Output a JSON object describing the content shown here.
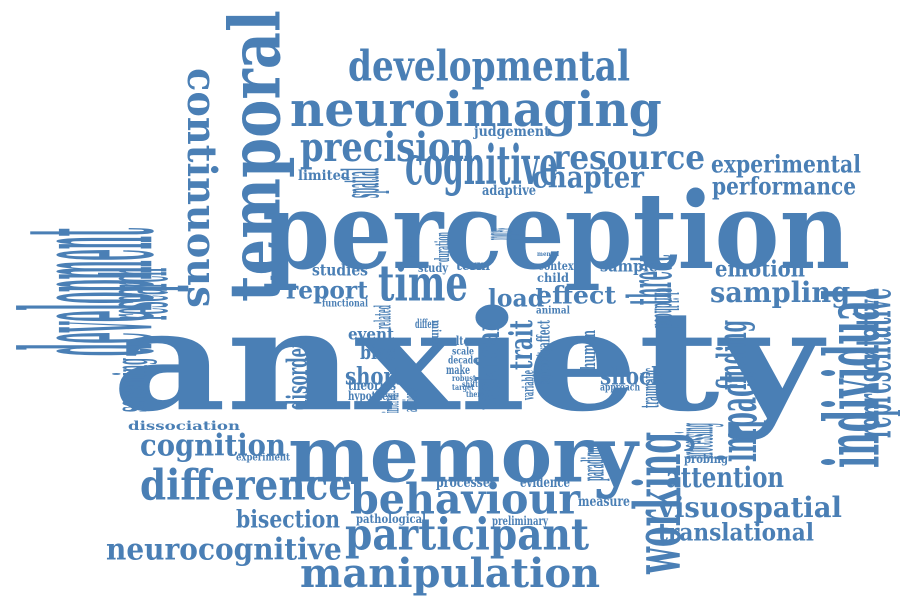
{
  "colors": {
    "word": "#4a7fb5",
    "background": "#ffffff"
  },
  "words": [
    {
      "text": "anxiety"
    },
    {
      "text": "perception"
    },
    {
      "text": "memory"
    },
    {
      "text": "temporal"
    },
    {
      "text": "neuroimaging"
    },
    {
      "text": "developmental"
    },
    {
      "text": "precision"
    },
    {
      "text": "cognitive"
    },
    {
      "text": "resource"
    },
    {
      "text": "chapter"
    },
    {
      "text": "experimental"
    },
    {
      "text": "performance"
    },
    {
      "text": "continuous"
    },
    {
      "text": "development"
    },
    {
      "text": "research"
    },
    {
      "text": "time"
    },
    {
      "text": "report"
    },
    {
      "text": "studies"
    },
    {
      "text": "load"
    },
    {
      "text": "effect"
    },
    {
      "text": "threat"
    },
    {
      "text": "sample"
    },
    {
      "text": "emotion"
    },
    {
      "text": "sampling"
    },
    {
      "text": "individual"
    },
    {
      "text": "representative"
    },
    {
      "text": "finding"
    },
    {
      "text": "impact"
    },
    {
      "text": "working"
    },
    {
      "text": "attention"
    },
    {
      "text": "visuospatial"
    },
    {
      "text": "translational"
    },
    {
      "text": "cognition"
    },
    {
      "text": "difference"
    },
    {
      "text": "behaviour"
    },
    {
      "text": "participant"
    },
    {
      "text": "manipulation"
    },
    {
      "text": "neurocognitive"
    },
    {
      "text": "bisection"
    },
    {
      "text": "shock"
    },
    {
      "text": "short"
    },
    {
      "text": "bias"
    },
    {
      "text": "event"
    },
    {
      "text": "theories"
    },
    {
      "text": "hypothesi"
    },
    {
      "text": "task"
    },
    {
      "text": "fear"
    },
    {
      "text": "trait"
    },
    {
      "text": "screening"
    },
    {
      "text": "disorder"
    },
    {
      "text": "dissociation"
    },
    {
      "text": "experiment"
    },
    {
      "text": "processes"
    },
    {
      "text": "evidence"
    },
    {
      "text": "measure"
    },
    {
      "text": "pathological"
    },
    {
      "text": "preliminary"
    },
    {
      "text": "processing"
    },
    {
      "text": "probing"
    },
    {
      "text": "judgement"
    },
    {
      "text": "limited"
    },
    {
      "text": "spatial"
    },
    {
      "text": "adaptive"
    },
    {
      "text": "study"
    },
    {
      "text": "term"
    },
    {
      "text": "context"
    },
    {
      "text": "child"
    },
    {
      "text": "childhood"
    },
    {
      "text": "approach"
    },
    {
      "text": "traumatic"
    },
    {
      "text": "human"
    },
    {
      "text": "paradigm"
    },
    {
      "text": "alter"
    },
    {
      "text": "scale"
    },
    {
      "text": "decade"
    },
    {
      "text": "make"
    },
    {
      "text": "animal"
    },
    {
      "text": "functional"
    },
    {
      "text": "mimic"
    },
    {
      "text": "related"
    },
    {
      "text": "progress"
    },
    {
      "text": "duration"
    },
    {
      "text": "person"
    },
    {
      "text": "mental"
    },
    {
      "text": "robust"
    },
    {
      "text": "target"
    },
    {
      "text": "interval"
    },
    {
      "text": "anxious"
    },
    {
      "text": "variable"
    },
    {
      "text": "superiority"
    },
    {
      "text": "affect"
    },
    {
      "text": "differ"
    },
    {
      "text": "shift"
    },
    {
      "text": "them"
    }
  ]
}
